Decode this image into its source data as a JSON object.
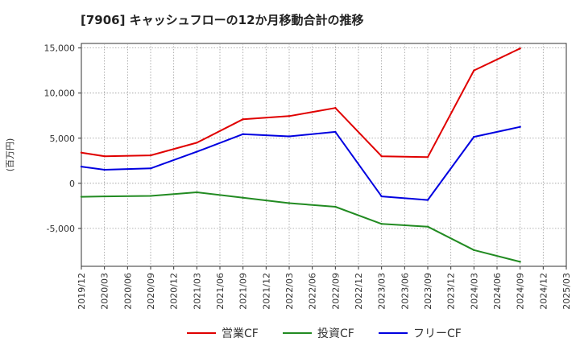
{
  "chart_data": {
    "type": "line",
    "title": "[7906]  キャッシュフローの12か月移動合計の推移",
    "ylabel": "(百万円)",
    "xlabel": "",
    "categories": [
      "2019/12",
      "2020/03",
      "2020/06",
      "2020/09",
      "2020/12",
      "2021/03",
      "2021/06",
      "2021/09",
      "2021/12",
      "2022/03",
      "2022/06",
      "2022/09",
      "2022/12",
      "2023/03",
      "2023/06",
      "2023/09",
      "2023/12",
      "2024/03",
      "2024/06",
      "2024/09",
      "2024/12",
      "2025/03"
    ],
    "ylim": [
      -9200,
      15500
    ],
    "yticks": [
      15000,
      10000,
      5000,
      0,
      -5000
    ],
    "ytick_labels": [
      "15,000",
      "10,000",
      "5,000",
      "0",
      "-5,000"
    ],
    "grid": true,
    "legend_position": "bottom",
    "series": [
      {
        "name": "営業CF",
        "color": "#e00000",
        "values": [
          3400,
          3000,
          null,
          3100,
          null,
          4500,
          null,
          7100,
          null,
          7450,
          null,
          8350,
          null,
          3000,
          null,
          2900,
          null,
          12500,
          null,
          14950,
          null,
          null
        ]
      },
      {
        "name": "投資CF",
        "color": "#228b22",
        "values": [
          -1500,
          -1450,
          null,
          -1400,
          null,
          -1000,
          null,
          -1600,
          null,
          -2200,
          null,
          -2600,
          null,
          -4500,
          null,
          -4800,
          null,
          -7400,
          null,
          -8700,
          null,
          null
        ]
      },
      {
        "name": "フリーCF",
        "color": "#0000e0",
        "values": [
          1850,
          1500,
          null,
          1650,
          null,
          3500,
          null,
          5450,
          null,
          5200,
          null,
          5700,
          null,
          -1450,
          null,
          -1850,
          null,
          5150,
          null,
          6250,
          null,
          null
        ]
      }
    ]
  }
}
